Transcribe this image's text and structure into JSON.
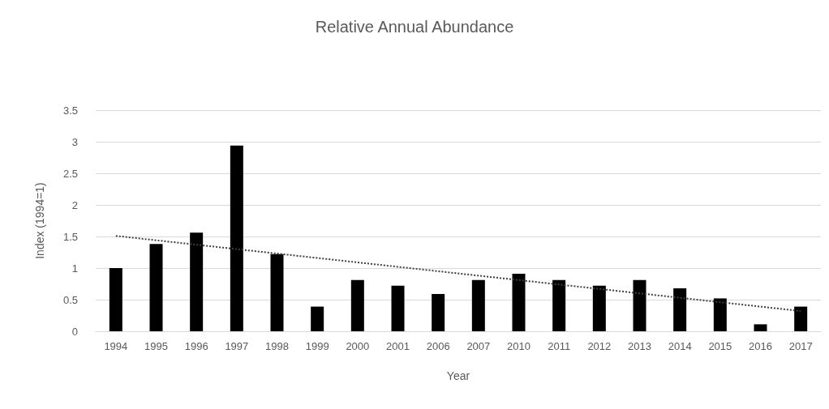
{
  "chart_data": {
    "type": "bar",
    "title": "Relative Annual Abundance",
    "xlabel": "Year",
    "ylabel": "Index (1994=1)",
    "categories": [
      "1994",
      "1995",
      "1996",
      "1997",
      "1998",
      "1999",
      "2000",
      "2001",
      "2006",
      "2007",
      "2010",
      "2011",
      "2012",
      "2013",
      "2014",
      "2015",
      "2016",
      "2017"
    ],
    "series": [
      {
        "color": "#000000",
        "values": [
          1.0,
          1.38,
          1.56,
          2.94,
          1.22,
          0.39,
          0.81,
          0.72,
          0.59,
          0.81,
          0.91,
          0.81,
          0.72,
          0.81,
          0.68,
          0.52,
          0.11,
          0.39
        ]
      },
      {
        "type": "line",
        "color": "#404040",
        "values": [
          1.51,
          1.44,
          1.37,
          1.3,
          1.23,
          1.16,
          1.09,
          1.02,
          0.95,
          0.88,
          0.81,
          0.74,
          0.67,
          0.6,
          0.53,
          0.46,
          0.39,
          0.32
        ],
        "line_style": "dotted",
        "marker": "none"
      }
    ],
    "ylim": [
      0,
      3.5
    ],
    "yticks": [
      0,
      0.5,
      1,
      1.5,
      2,
      2.5,
      3,
      3.5
    ],
    "grid": "y"
  }
}
